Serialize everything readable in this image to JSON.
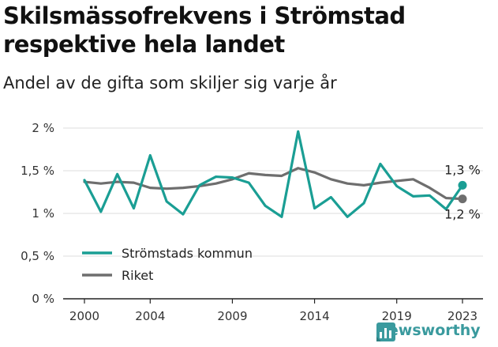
{
  "chart_data": {
    "type": "line",
    "title": "Skilsmässofrekvens i Strömstad respektive hela landet",
    "subtitle": "Andel av de gifta som skiljer sig varje år",
    "x": [
      2000,
      2001,
      2002,
      2003,
      2004,
      2005,
      2006,
      2007,
      2008,
      2009,
      2010,
      2011,
      2012,
      2013,
      2014,
      2015,
      2016,
      2017,
      2018,
      2019,
      2020,
      2021,
      2022,
      2023
    ],
    "xticks": [
      2000,
      2004,
      2009,
      2014,
      2019,
      2023
    ],
    "xtick_labels": [
      "2000",
      "2004",
      "2009",
      "2014",
      "2019",
      "2023"
    ],
    "xlim": [
      2000,
      2023
    ],
    "yticks": [
      0,
      0.5,
      1,
      1.5,
      2
    ],
    "ytick_labels": [
      "0 %",
      "0,5 %",
      "1 %",
      "1,5 %",
      "2 %"
    ],
    "ylim": [
      0,
      2
    ],
    "grid": true,
    "legend_position": "bottom-left",
    "series": [
      {
        "name": "Strömstads kommun",
        "color": "#1a9e94",
        "values": [
          1.39,
          1.02,
          1.46,
          1.06,
          1.68,
          1.14,
          0.99,
          1.33,
          1.43,
          1.42,
          1.36,
          1.09,
          0.96,
          1.96,
          1.06,
          1.19,
          0.96,
          1.12,
          1.58,
          1.32,
          1.2,
          1.21,
          1.05,
          1.33
        ],
        "end_label": "1,3 %"
      },
      {
        "name": "Riket",
        "color": "#6e6e6e",
        "values": [
          1.37,
          1.35,
          1.37,
          1.36,
          1.3,
          1.29,
          1.3,
          1.32,
          1.35,
          1.4,
          1.47,
          1.45,
          1.44,
          1.53,
          1.48,
          1.4,
          1.35,
          1.33,
          1.36,
          1.38,
          1.4,
          1.3,
          1.18,
          1.17
        ],
        "end_label": "1,2 %"
      }
    ]
  },
  "brand": {
    "name": "Newsworthy",
    "icon": "bar-chart-logo-icon",
    "color": "#3a9a9e"
  }
}
